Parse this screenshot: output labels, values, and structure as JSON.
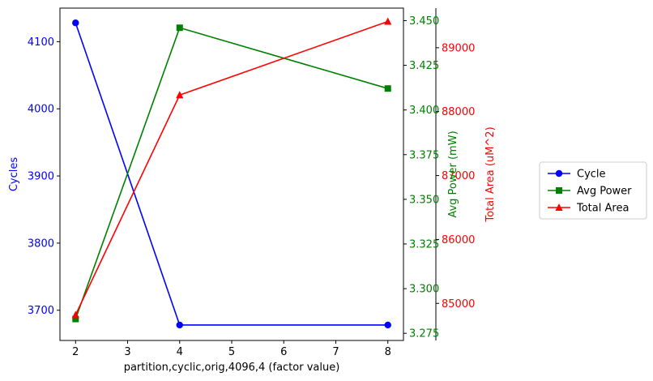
{
  "chart_data": {
    "type": "line",
    "xlabel": "partition,cyclic,orig,4096,4 (factor value)",
    "x": [
      2,
      4,
      8
    ],
    "xlim": [
      1.7,
      8.3
    ],
    "xticks": [
      2,
      3,
      4,
      5,
      6,
      7,
      8
    ],
    "axes": {
      "cycles": {
        "label": "Cycles",
        "color": "#0000ff",
        "ylim": [
          3655,
          4150
        ],
        "ticks": [
          3700,
          3800,
          3900,
          4000,
          4100
        ],
        "tick_labels": [
          "3700",
          "3800",
          "3900",
          "4000",
          "4100"
        ]
      },
      "power": {
        "label": "Avg Power (mW)",
        "color": "#008000",
        "ylim": [
          3.271,
          3.457
        ],
        "ticks": [
          3.275,
          3.3,
          3.325,
          3.35,
          3.375,
          3.4,
          3.425,
          3.45
        ],
        "tick_labels": [
          "3.275",
          "3.300",
          "3.325",
          "3.350",
          "3.375",
          "3.400",
          "3.425",
          "3.450"
        ]
      },
      "area": {
        "label": "Total Area (uM^2)",
        "color": "#ff0000",
        "ylim": [
          84420,
          89620
        ],
        "ticks": [
          85000,
          86000,
          87000,
          88000,
          89000
        ],
        "tick_labels": [
          "85000",
          "86000",
          "87000",
          "88000",
          "89000"
        ]
      }
    },
    "series": [
      {
        "name": "Cycle",
        "axis": "cycles",
        "color": "#0000ff",
        "marker": "circle",
        "values": [
          4128,
          3678,
          3678
        ]
      },
      {
        "name": "Avg Power",
        "axis": "power",
        "color": "#008000",
        "marker": "square",
        "values": [
          3.283,
          3.446,
          3.412
        ]
      },
      {
        "name": "Total Area",
        "axis": "area",
        "color": "#ff0000",
        "marker": "triangle",
        "values": [
          84820,
          88260,
          89410
        ]
      }
    ],
    "legend": {
      "position": "right"
    },
    "grid": false
  }
}
